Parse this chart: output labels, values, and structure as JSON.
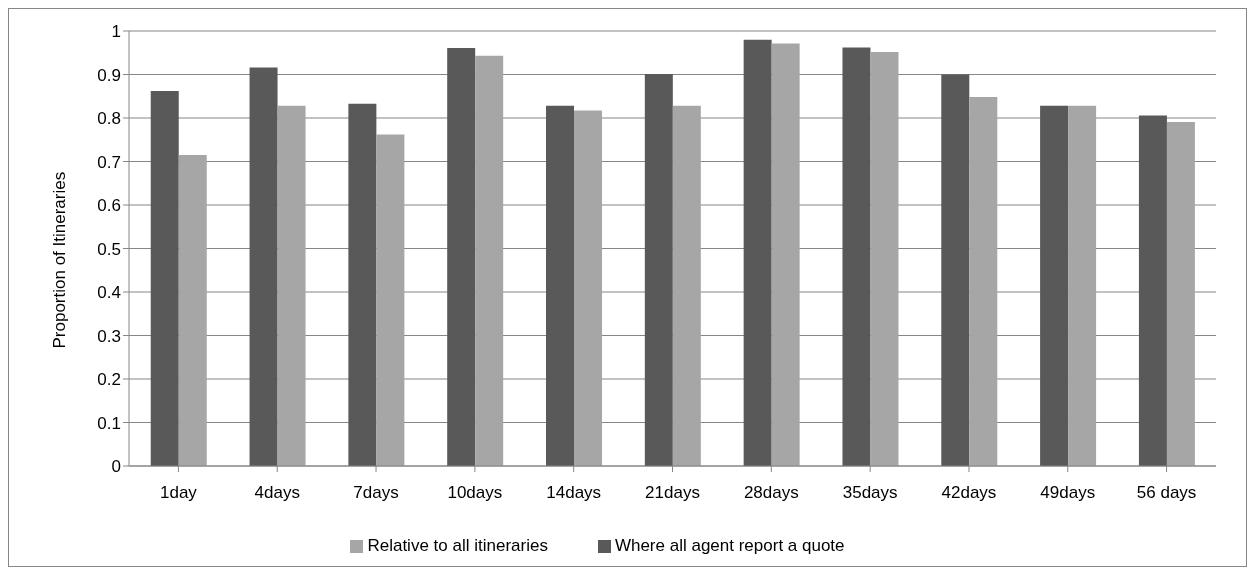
{
  "chart_data": {
    "type": "bar",
    "ylabel": "Proportion of Itineraries",
    "categories": [
      "1day",
      "4days",
      "7days",
      "10days",
      "14days",
      "21days",
      "28days",
      "35days",
      "42days",
      "49days",
      "56 days"
    ],
    "series": [
      {
        "name": "Where all agent report a quote",
        "color": "#595959",
        "values": [
          0.862,
          0.916,
          0.833,
          0.961,
          0.828,
          0.901,
          0.98,
          0.962,
          0.9,
          0.828,
          0.806
        ]
      },
      {
        "name": "Relative to all itineraries",
        "color": "#a6a6a6",
        "values": [
          0.715,
          0.828,
          0.762,
          0.943,
          0.817,
          0.828,
          0.971,
          0.952,
          0.848,
          0.828,
          0.791
        ]
      }
    ],
    "ylim": [
      0,
      1
    ],
    "yticks": [
      0,
      0.1,
      0.2,
      0.3,
      0.4,
      0.5,
      0.6,
      0.7,
      0.8,
      0.9,
      1
    ],
    "grid": "y",
    "legend": "bottom"
  }
}
